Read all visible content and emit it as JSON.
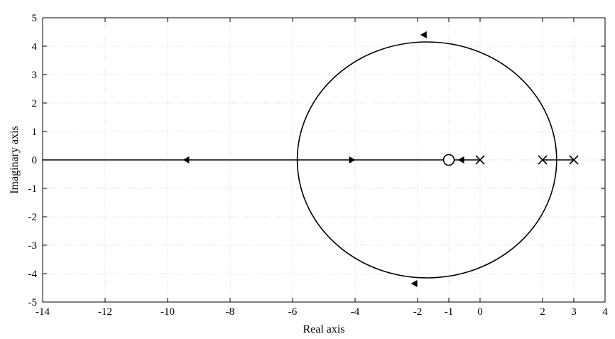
{
  "chart_data": {
    "type": "line",
    "title": "",
    "xlabel": "Real axis",
    "ylabel": "Imaginary axis",
    "xlim": [
      -14,
      4
    ],
    "ylim": [
      -5,
      5
    ],
    "x_ticks": [
      -14,
      -12,
      -10,
      -8,
      -6,
      -4,
      -2,
      -1,
      0,
      2,
      3,
      4
    ],
    "y_ticks": [
      -5,
      -4,
      -3,
      -2,
      -1,
      0,
      1,
      2,
      3,
      4,
      5
    ],
    "grid": true,
    "legend": "none",
    "line_color": "#000000",
    "grid_color": "#d9d9d9",
    "poles": [
      [
        0,
        0
      ],
      [
        2,
        0
      ],
      [
        3,
        0
      ]
    ],
    "zeros": [
      [
        -1,
        0
      ]
    ],
    "circle": {
      "center": [
        -1.7,
        0
      ],
      "radius": 4.15
    },
    "series": [
      {
        "points": [
          [
            -14,
            0
          ],
          [
            -1,
            0
          ]
        ]
      },
      {
        "points": [
          [
            -1,
            0
          ],
          [
            0,
            0
          ]
        ]
      },
      {
        "points": [
          [
            2,
            0
          ],
          [
            3,
            0
          ]
        ]
      }
    ],
    "arrows": [
      {
        "x": -9.4,
        "y": 0,
        "dir": "left"
      },
      {
        "x": -4.1,
        "y": 0,
        "dir": "right"
      },
      {
        "x": -0.6,
        "y": 0,
        "dir": "left"
      },
      {
        "x": -1.8,
        "y": 4.4,
        "dir": "left"
      },
      {
        "x": -2.1,
        "y": -4.35,
        "dir": "left"
      }
    ]
  }
}
